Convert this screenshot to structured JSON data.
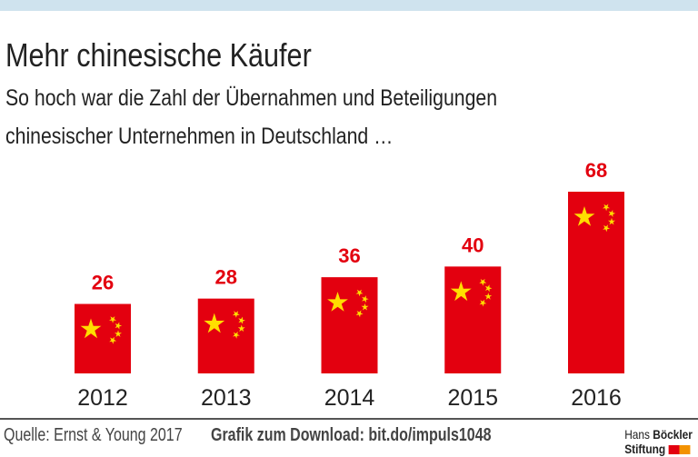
{
  "header": {
    "title": "Mehr chinesische Käufer",
    "subtitle_lines": [
      "So hoch war die Zahl der Übernahmen und Beteiligungen",
      "chinesischer Unternehmen in Deutschland …"
    ]
  },
  "chart_data": {
    "type": "bar",
    "categories": [
      "2012",
      "2013",
      "2014",
      "2015",
      "2016"
    ],
    "values": [
      26,
      28,
      36,
      40,
      68
    ],
    "title": "Mehr chinesische Käufer",
    "xlabel": "",
    "ylabel": "",
    "ylim": [
      0,
      68
    ],
    "bar_color": "#e3000f",
    "label_color": "#e3000f",
    "star_color": "#ffde00"
  },
  "footer": {
    "source": "Quelle: Ernst & Young 2017",
    "download": "Grafik zum Download: bit.do/impuls1048"
  },
  "logo": {
    "line1_a": "Hans",
    "line1_b": "Böckler",
    "line2": "Stiftung",
    "colors": [
      "#e3000f",
      "#f39200"
    ]
  }
}
